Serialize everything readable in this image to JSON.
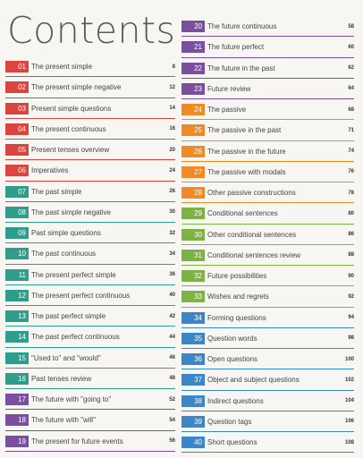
{
  "title": "Contents",
  "left_entries": [
    {
      "num": "01",
      "label": "The present simple",
      "page": "8",
      "color": "#d9453f"
    },
    {
      "num": "02",
      "label": "The present simple negative",
      "page": "12",
      "color": "#d9453f"
    },
    {
      "num": "03",
      "label": "Present simple questions",
      "page": "14",
      "color": "#d9453f"
    },
    {
      "num": "04",
      "label": "The present continuous",
      "page": "16",
      "color": "#d9453f"
    },
    {
      "num": "05",
      "label": "Present tenses overview",
      "page": "20",
      "color": "#d9453f"
    },
    {
      "num": "06",
      "label": "Imperatives",
      "page": "24",
      "color": "#d9453f"
    },
    {
      "num": "07",
      "label": "The past simple",
      "page": "26",
      "color": "#2f9c8c"
    },
    {
      "num": "08",
      "label": "The past simple negative",
      "page": "30",
      "color": "#2f9c8c"
    },
    {
      "num": "09",
      "label": "Past simple questions",
      "page": "32",
      "color": "#2f9c8c"
    },
    {
      "num": "10",
      "label": "The past continuous",
      "page": "34",
      "color": "#2f9c8c"
    },
    {
      "num": "11",
      "label": "The present perfect simple",
      "page": "36",
      "color": "#2f9c8c"
    },
    {
      "num": "12",
      "label": "The present perfect continuous",
      "page": "40",
      "color": "#2f9c8c"
    },
    {
      "num": "13",
      "label": "The past perfect simple",
      "page": "42",
      "color": "#2f9c8c"
    },
    {
      "num": "14",
      "label": "The past perfect continuous",
      "page": "44",
      "color": "#2f9c8c"
    },
    {
      "num": "15",
      "label": "\"Used to\" and \"would\"",
      "page": "46",
      "color": "#2f9c8c"
    },
    {
      "num": "16",
      "label": "Past tenses review",
      "page": "48",
      "color": "#2f9c8c"
    },
    {
      "num": "17",
      "label": "The future with \"going to\"",
      "page": "52",
      "color": "#7b4fa0"
    },
    {
      "num": "18",
      "label": "The future with \"will\"",
      "page": "54",
      "color": "#7b4fa0"
    },
    {
      "num": "19",
      "label": "The present for future events",
      "page": "56",
      "color": "#7b4fa0"
    }
  ],
  "right_entries": [
    {
      "num": "20",
      "label": "The future continuous",
      "page": "58",
      "color": "#7b4fa0"
    },
    {
      "num": "21",
      "label": "The future perfect",
      "page": "60",
      "color": "#7b4fa0"
    },
    {
      "num": "22",
      "label": "The future in the past",
      "page": "62",
      "color": "#7b4fa0"
    },
    {
      "num": "23",
      "label": "Future review",
      "page": "64",
      "color": "#7b4fa0"
    },
    {
      "num": "24",
      "label": "The passive",
      "page": "68",
      "color": "#f08a24"
    },
    {
      "num": "25",
      "label": "The passive in the past",
      "page": "71",
      "color": "#f08a24"
    },
    {
      "num": "26",
      "label": "The passive in the future",
      "page": "74",
      "color": "#f08a24"
    },
    {
      "num": "27",
      "label": "The passive with modals",
      "page": "76",
      "color": "#f08a24"
    },
    {
      "num": "28",
      "label": "Other passive constructions",
      "page": "78",
      "color": "#f08a24"
    },
    {
      "num": "29",
      "label": "Conditional sentences",
      "page": "80",
      "color": "#7cb342"
    },
    {
      "num": "30",
      "label": "Other conditional sentences",
      "page": "86",
      "color": "#7cb342"
    },
    {
      "num": "31",
      "label": "Conditional sentences review",
      "page": "88",
      "color": "#7cb342"
    },
    {
      "num": "32",
      "label": "Future possibilities",
      "page": "90",
      "color": "#7cb342"
    },
    {
      "num": "33",
      "label": "Wishes and regrets",
      "page": "92",
      "color": "#7cb342"
    },
    {
      "num": "34",
      "label": "Forming questions",
      "page": "94",
      "color": "#3a86c8"
    },
    {
      "num": "35",
      "label": "Question words",
      "page": "98",
      "color": "#3a86c8"
    },
    {
      "num": "36",
      "label": "Open questions",
      "page": "100",
      "color": "#3a86c8"
    },
    {
      "num": "37",
      "label": "Object and subject questions",
      "page": "102",
      "color": "#3a86c8"
    },
    {
      "num": "38",
      "label": "Indirect questions",
      "page": "104",
      "color": "#3a86c8"
    },
    {
      "num": "39",
      "label": "Question tags",
      "page": "106",
      "color": "#3a86c8"
    },
    {
      "num": "40",
      "label": "Short questions",
      "page": "108",
      "color": "#3a86c8"
    }
  ]
}
